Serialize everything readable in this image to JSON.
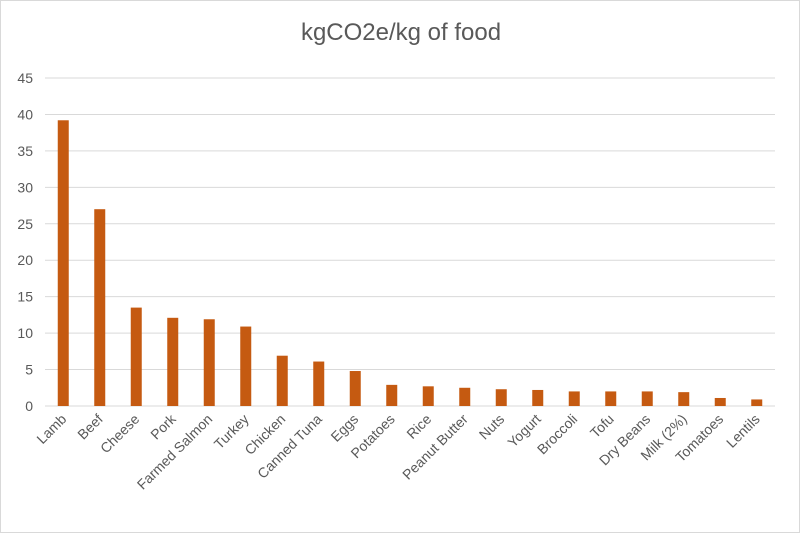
{
  "chart_data": {
    "type": "bar",
    "title": "kgCO2e/kg of food",
    "xlabel": "",
    "ylabel": "",
    "ylim": [
      0,
      45
    ],
    "yticks": [
      0,
      5,
      10,
      15,
      20,
      25,
      30,
      35,
      40,
      45
    ],
    "grid": true,
    "legend": "none",
    "bar_color": "#C55A11",
    "categories": [
      "Lamb",
      "Beef",
      "Cheese",
      "Pork",
      "Farmed Salmon",
      "Turkey",
      "Chicken",
      "Canned Tuna",
      "Eggs",
      "Potatoes",
      "Rice",
      "Peanut Butter",
      "Nuts",
      "Yogurt",
      "Broccoli",
      "Tofu",
      "Dry Beans",
      "Milk (2%)",
      "Tomatoes",
      "Lentils"
    ],
    "values": [
      39.2,
      27.0,
      13.5,
      12.1,
      11.9,
      10.9,
      6.9,
      6.1,
      4.8,
      2.9,
      2.7,
      2.5,
      2.3,
      2.2,
      2.0,
      2.0,
      2.0,
      1.9,
      1.1,
      0.9
    ]
  }
}
